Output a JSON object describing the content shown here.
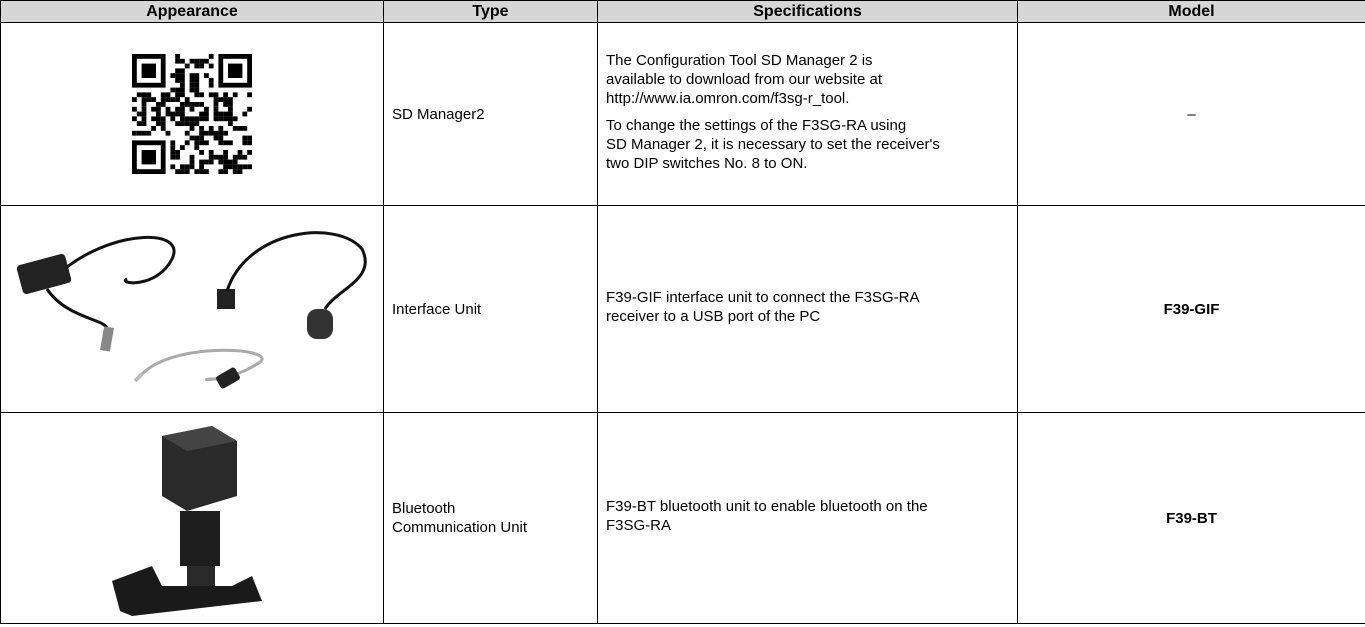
{
  "table": {
    "headers": [
      "Appearance",
      "Type",
      "Specifications",
      "Model"
    ],
    "rows": [
      {
        "type": [
          "SD Manager2"
        ],
        "specifications": [
          [
            "The Configuration Tool SD Manager 2 is",
            "available to download from our website at",
            "http://www.ia.omron.com/f3sg-r_tool."
          ],
          [
            "To change the settings of the F3SG-RA using",
            "SD Manager 2, it is necessary to set the receiver's",
            "two DIP switches No. 8 to ON."
          ]
        ],
        "model": "–"
      },
      {
        "type": [
          "Interface Unit"
        ],
        "specifications": [
          [
            "F39-GIF interface unit to connect the F3SG-RA",
            "receiver to a USB port of the PC"
          ]
        ],
        "model": "F39-GIF"
      },
      {
        "type": [
          "Bluetooth",
          "Communication Unit"
        ],
        "specifications": [
          [
            "F39-BT bluetooth unit to enable bluetooth on the",
            "F3SG-RA"
          ]
        ],
        "model": "F39-BT"
      }
    ]
  }
}
